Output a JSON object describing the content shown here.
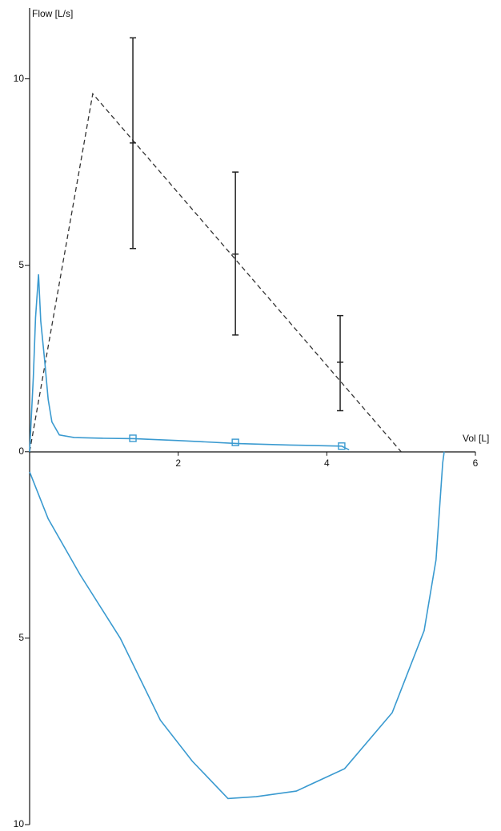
{
  "chart_data": {
    "type": "line",
    "y_label": "Flow [L/s]",
    "x_label": "Vol [L]",
    "xlim": [
      0,
      6
    ],
    "ylim": [
      -10,
      11.9
    ],
    "xticks": [
      2,
      4,
      6
    ],
    "yticks": [
      {
        "value": -10,
        "label": "10"
      },
      {
        "value": -5,
        "label": "5"
      },
      0,
      5,
      10
    ],
    "series": [
      {
        "style": "dashed",
        "color": "#333333",
        "x": [
          0,
          0.85,
          5.0
        ],
        "values": [
          0,
          9.6,
          0
        ]
      },
      {
        "style": "errorbar",
        "color": "#222222",
        "x": [
          1.39,
          2.77,
          4.18
        ],
        "values": [
          8.28,
          5.3,
          2.4
        ],
        "lower": [
          5.45,
          3.13,
          1.1
        ],
        "upper": [
          11.1,
          7.5,
          3.65
        ]
      },
      {
        "style": "solid",
        "color": "#3a9ad0",
        "x": [
          0,
          0.05,
          0.08,
          0.12,
          0.15,
          0.2,
          0.25,
          0.3,
          0.4,
          0.6,
          1.0,
          1.4,
          2.0,
          2.8,
          3.5,
          4.2,
          4.3
        ],
        "values": [
          0,
          2.0,
          3.6,
          4.76,
          3.5,
          2.5,
          1.4,
          0.8,
          0.45,
          0.38,
          0.36,
          0.35,
          0.3,
          0.22,
          0.18,
          0.15,
          0.05
        ]
      },
      {
        "style": "markers",
        "color": "#3a9ad0",
        "x": [
          1.39,
          2.77,
          4.2
        ],
        "values": [
          0.36,
          0.25,
          0.15
        ]
      },
      {
        "style": "solid",
        "color": "#3a9ad0",
        "x": [
          0,
          0.25,
          0.68,
          1.22,
          1.76,
          2.19,
          2.67,
          3.05,
          3.59,
          4.24,
          4.88,
          5.31,
          5.47,
          5.56,
          5.58
        ],
        "values": [
          -0.54,
          -1.8,
          -3.3,
          -5.0,
          -7.2,
          -8.3,
          -9.3,
          -9.25,
          -9.1,
          -8.5,
          -7.0,
          -4.8,
          -2.9,
          -0.3,
          0
        ]
      }
    ]
  }
}
